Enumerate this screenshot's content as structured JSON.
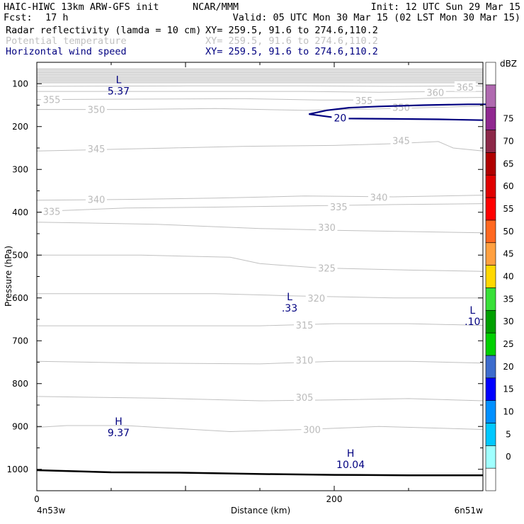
{
  "header": {
    "model": "HAIC-HIWC 13km ARW-GFS init",
    "org": "NCAR/MMM",
    "init": "Init: 12 UTC Sun 29 Mar 15",
    "fcst_label": "Fcst:",
    "fcst_value": "17 h",
    "valid": "Valid: 05 UTC Mon 30 Mar 15 (02 LST Mon 30 Mar 15)",
    "fields": [
      {
        "name": "Radar reflectivity (lamda = 10 cm)",
        "xy": "XY= 259.5, 91.6 to 274.6,110.2",
        "color": "#000000"
      },
      {
        "name": "Potential temperature",
        "xy": "XY= 259.5, 91.6 to 274.6,110.2",
        "color": "#c0c0c0"
      },
      {
        "name": "Horizontal wind speed",
        "xy": "XY= 259.5, 91.6 to 274.6,110.2",
        "color": "#000080"
      }
    ]
  },
  "axes": {
    "ylabel": "Pressure (hPa)",
    "xlabel": "Distance (km)",
    "x_left_endpoint": "4n53w",
    "x_right_endpoint": "6n51w"
  },
  "chart_data": {
    "type": "contour",
    "x_range_km": [
      0,
      300
    ],
    "x_ticks": [
      0,
      200
    ],
    "x_tick_labels": [
      "0",
      "200"
    ],
    "y_range_hpa": [
      1050,
      50
    ],
    "y_ticks": [
      100,
      200,
      300,
      400,
      500,
      600,
      700,
      800,
      900,
      1000
    ],
    "y_tick_labels": [
      "100",
      "200",
      "300",
      "400",
      "500",
      "600",
      "700",
      "800",
      "900",
      "1000"
    ],
    "terrain_surface_hpa": [
      {
        "x": 0,
        "p": 1002
      },
      {
        "x": 50,
        "p": 1007
      },
      {
        "x": 100,
        "p": 1008
      },
      {
        "x": 150,
        "p": 1011
      },
      {
        "x": 200,
        "p": 1013
      },
      {
        "x": 250,
        "p": 1014
      },
      {
        "x": 300,
        "p": 1014
      }
    ],
    "potential_temperature": {
      "color": "#c0c0c0",
      "levels": [
        300,
        305,
        310,
        315,
        320,
        325,
        330,
        335,
        340,
        345,
        350,
        355,
        360,
        365
      ],
      "contours": [
        {
          "level": 300,
          "points": [
            [
              0,
              902
            ],
            [
              20,
              898
            ],
            [
              60,
              898
            ],
            [
              130,
              912
            ],
            [
              180,
              907
            ],
            [
              230,
              900
            ],
            [
              300,
              907
            ]
          ],
          "labels": [
            [
              185,
              907
            ]
          ]
        },
        {
          "level": 305,
          "points": [
            [
              0,
              830
            ],
            [
              80,
              834
            ],
            [
              150,
              840
            ],
            [
              200,
              838
            ],
            [
              250,
              835
            ],
            [
              300,
              840
            ]
          ],
          "labels": [
            [
              180,
              832
            ]
          ]
        },
        {
          "level": 310,
          "points": [
            [
              0,
              748
            ],
            [
              70,
              752
            ],
            [
              150,
              754
            ],
            [
              200,
              748
            ],
            [
              250,
              748
            ],
            [
              300,
              752
            ]
          ],
          "labels": [
            [
              180,
              745
            ]
          ]
        },
        {
          "level": 315,
          "points": [
            [
              0,
              665
            ],
            [
              80,
              665
            ],
            [
              150,
              665
            ],
            [
              200,
              660
            ],
            [
              250,
              660
            ],
            [
              300,
              664
            ]
          ],
          "labels": [
            [
              180,
              663
            ]
          ]
        },
        {
          "level": 320,
          "points": [
            [
              0,
              590
            ],
            [
              60,
              590
            ],
            [
              120,
              590
            ],
            [
              170,
              595
            ],
            [
              240,
              600
            ],
            [
              300,
              600
            ]
          ],
          "labels": [
            [
              188,
              600
            ]
          ]
        },
        {
          "level": 325,
          "points": [
            [
              0,
              500
            ],
            [
              70,
              500
            ],
            [
              130,
              505
            ],
            [
              150,
              520
            ],
            [
              190,
              530
            ],
            [
              250,
              535
            ],
            [
              300,
              538
            ]
          ],
          "labels": [
            [
              195,
              530
            ]
          ]
        },
        {
          "level": 330,
          "points": [
            [
              0,
              423
            ],
            [
              80,
              428
            ],
            [
              150,
              438
            ],
            [
              200,
              442
            ],
            [
              250,
              445
            ],
            [
              300,
              448
            ]
          ],
          "labels": [
            [
              195,
              435
            ]
          ]
        },
        {
          "level": 335,
          "points": [
            [
              0,
              400
            ],
            [
              10,
              397
            ],
            [
              60,
              390
            ],
            [
              120,
              388
            ],
            [
              180,
              385
            ],
            [
              240,
              382
            ],
            [
              300,
              380
            ]
          ],
          "labels": [
            [
              10,
              398
            ],
            [
              203,
              387
            ]
          ]
        },
        {
          "level": 340,
          "points": [
            [
              0,
              372
            ],
            [
              60,
              370
            ],
            [
              120,
              367
            ],
            [
              180,
              362
            ],
            [
              240,
              364
            ],
            [
              300,
              360
            ]
          ],
          "labels": [
            [
              40,
              370
            ],
            [
              230,
              365
            ]
          ]
        },
        {
          "level": 345,
          "points": [
            [
              0,
              257
            ],
            [
              40,
              254
            ],
            [
              90,
              250
            ],
            [
              140,
              246
            ],
            [
              200,
              244
            ],
            [
              240,
              240
            ],
            [
              270,
              235
            ],
            [
              280,
              250
            ],
            [
              300,
              257
            ]
          ],
          "labels": [
            [
              40,
              252
            ],
            [
              245,
              233
            ]
          ]
        },
        {
          "level": 350,
          "points": [
            [
              0,
              160
            ],
            [
              60,
              160
            ],
            [
              120,
              158
            ],
            [
              180,
              162
            ],
            [
              240,
              158
            ],
            [
              300,
              152
            ]
          ],
          "labels": [
            [
              40,
              160
            ],
            [
              245,
              155
            ]
          ]
        },
        {
          "level": 355,
          "points": [
            [
              0,
              137
            ],
            [
              60,
              136
            ],
            [
              140,
              135
            ],
            [
              190,
              138
            ],
            [
              230,
              138
            ],
            [
              270,
              133
            ],
            [
              300,
              132
            ]
          ],
          "labels": [
            [
              10,
              137
            ],
            [
              220,
              139
            ]
          ]
        },
        {
          "level": 360,
          "points": [
            [
              0,
              118
            ],
            [
              100,
              118
            ],
            [
              180,
              118
            ],
            [
              230,
              120
            ],
            [
              280,
              118
            ],
            [
              300,
              118
            ]
          ],
          "labels": [
            [
              268,
              120
            ]
          ]
        },
        {
          "level": 365,
          "points": [
            [
              0,
              106
            ],
            [
              100,
              105
            ],
            [
              180,
              105
            ],
            [
              240,
              106
            ],
            [
              300,
              105
            ]
          ],
          "labels": [
            [
              288,
              108
            ]
          ]
        }
      ],
      "stratosphere_bands_hpa": [
        65,
        68,
        71,
        74,
        77,
        80,
        83,
        86,
        89,
        92,
        95,
        98
      ]
    },
    "wind_speed": {
      "color": "#000080",
      "levels": [
        20
      ],
      "contours": [
        {
          "level": 20,
          "points": [
            [
              305,
              148
            ],
            [
              290,
              148
            ],
            [
              260,
              150
            ],
            [
              230,
              153
            ],
            [
              210,
              156
            ],
            [
              195,
              162
            ],
            [
              183,
              171
            ],
            [
              205,
              181
            ],
            [
              240,
              182
            ],
            [
              270,
              183
            ],
            [
              300,
              185
            ]
          ],
          "labels": [
            [
              204,
              180
            ]
          ]
        }
      ],
      "extrema": [
        {
          "kind": "L",
          "value": "5.37",
          "x": 55,
          "p": 115
        },
        {
          "kind": "L",
          "value": ".33",
          "x": 170,
          "p": 622
        },
        {
          "kind": "L",
          "value": ".10",
          "x": 293,
          "p": 653
        },
        {
          "kind": "H",
          "value": "9.37",
          "x": 55,
          "p": 913
        },
        {
          "kind": "H",
          "value": "10.04",
          "x": 211,
          "p": 987
        }
      ]
    },
    "reflectivity": {
      "unit": "dBZ",
      "levels": [
        0,
        5,
        10,
        15,
        20,
        25,
        30,
        35,
        40,
        45,
        50,
        55,
        60,
        65,
        70,
        75
      ],
      "colors": [
        "#ffffff",
        "#a0ffff",
        "#00c8ff",
        "#0090ff",
        "#0000ff",
        "#3d6ccd",
        "#00d000",
        "#00a000",
        "#38e038",
        "#ffd800",
        "#ffa040",
        "#ff6820",
        "#ff0000",
        "#e00000",
        "#b00000",
        "#8c2848",
        "#902890",
        "#b06ab0",
        "#ffffff"
      ]
    }
  }
}
